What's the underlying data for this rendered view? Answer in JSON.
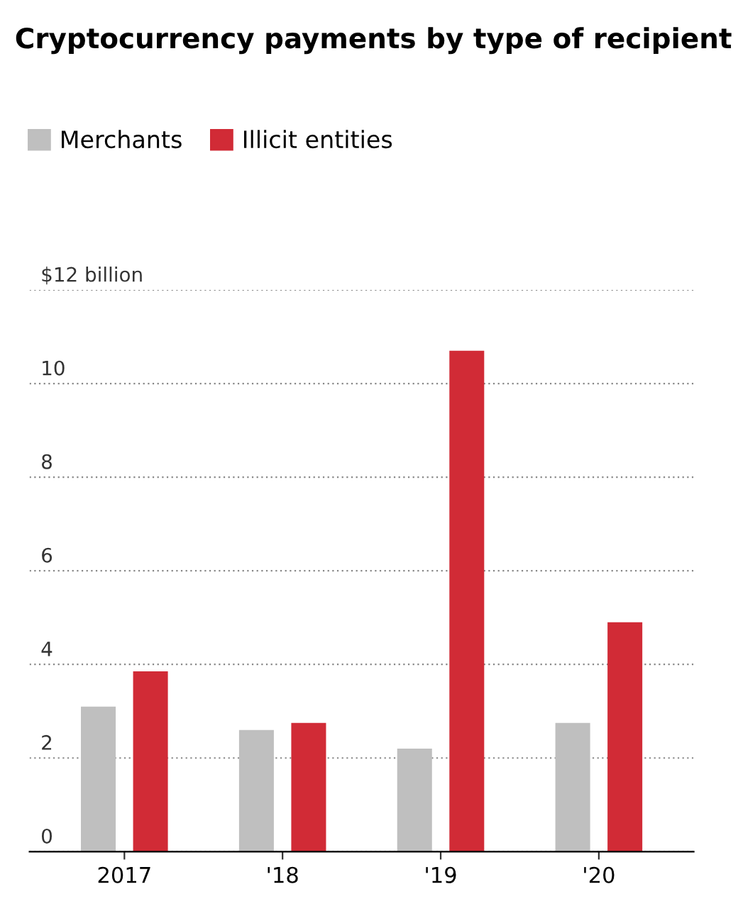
{
  "chart_data": {
    "type": "bar",
    "title": "Cryptocurrency payments by type of recipient",
    "categories": [
      "2017",
      "'18",
      "'19",
      "'20"
    ],
    "series": [
      {
        "name": "Merchants",
        "color": "#bfbfbf",
        "values": [
          3.1,
          2.6,
          2.2,
          2.75
        ]
      },
      {
        "name": "Illicit entities",
        "color": "#d12b36",
        "values": [
          3.85,
          2.75,
          10.7,
          4.9
        ]
      }
    ],
    "ylim": [
      0,
      12
    ],
    "yticks": [
      0,
      2,
      4,
      6,
      8,
      10,
      {
        "value": 12,
        "label": "$12 billion"
      }
    ],
    "grid": "y",
    "legend": "top left"
  }
}
